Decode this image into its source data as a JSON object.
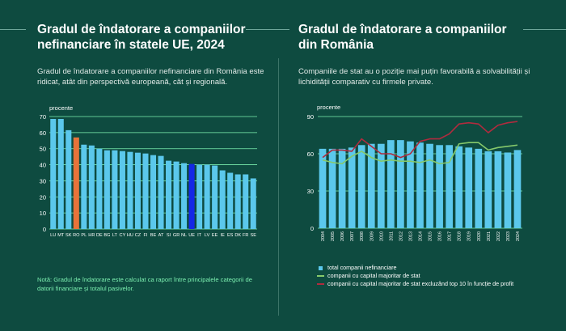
{
  "left_panel": {
    "title_line1": "Gradul de îndatorare a companiilor",
    "title_line2": "nefinanciare în statele UE, 2024",
    "description": "Gradul de îndatorare a companiilor nefinanciare din România este ridicat, atât din perspectivă europeană, cât și regională.",
    "note": "Notă: Gradul de îndatorare este calculat ca raport între principalele categorii de datorii financiare și totalul pasivelor."
  },
  "right_panel": {
    "title_line1": "Gradul de îndatorare a companiilor",
    "title_line2": "din România",
    "description": "Companiile de stat au o poziție mai puțin favorabilă a solvabilității și lichidității comparativ cu firmele private."
  },
  "colors": {
    "background": "#0e4b40",
    "bar": "#5bc8ec",
    "highlight_ro": "#e8733a",
    "highlight_eu": "#1428e6",
    "green_line": "#86c96b",
    "red_line": "#b02b3e",
    "gridline": "#7cf0b0",
    "note_text": "#7cf0b0"
  },
  "chart_data": [
    {
      "type": "bar",
      "ylabel": "procente",
      "ylim": [
        0,
        70
      ],
      "yticks": [
        0,
        10,
        20,
        30,
        40,
        50,
        60,
        70
      ],
      "grid": true,
      "categories": [
        "LU",
        "MT",
        "SK",
        "RO",
        "PL",
        "HR",
        "DE",
        "BG",
        "LT",
        "CY",
        "HU",
        "CZ",
        "FI",
        "BE",
        "AT",
        "SI",
        "GR",
        "NL",
        "UE",
        "IT",
        "LV",
        "EE",
        "IE",
        "ES",
        "DK",
        "FR",
        "SE"
      ],
      "values": [
        68.5,
        68.5,
        61.5,
        57,
        52.5,
        52,
        50,
        49,
        49,
        48.5,
        48,
        47.5,
        47,
        46,
        45.5,
        42.5,
        42,
        41,
        40.5,
        40,
        40,
        39.5,
        36.5,
        35,
        34,
        34,
        31.5
      ],
      "highlight": {
        "RO": "highlight_ro",
        "UE": "highlight_eu"
      }
    },
    {
      "type": "bar",
      "ylabel": "procente",
      "ylim": [
        0,
        90
      ],
      "yticks": [
        0,
        30,
        60,
        90
      ],
      "grid": true,
      "x": [
        "2004",
        "2005",
        "2006",
        "2007",
        "2008",
        "2009",
        "2010",
        "2011",
        "2012",
        "2013",
        "2014",
        "2015",
        "2016",
        "2017",
        "2018",
        "2019",
        "2020",
        "2021",
        "2022",
        "2023",
        "2024"
      ],
      "series": [
        {
          "name": "total companii nefinanciare",
          "kind": "bar",
          "values": [
            64,
            64,
            64,
            65,
            67,
            68,
            68,
            71,
            71,
            70,
            69,
            68,
            67,
            67,
            66,
            65,
            64,
            62,
            62,
            61,
            63
          ]
        },
        {
          "name": "companii cu capital majoritar de stat",
          "kind": "line",
          "values": [
            55,
            53,
            52,
            58,
            62,
            57,
            54,
            55,
            54,
            54,
            53,
            55,
            52,
            53,
            68,
            69,
            69,
            63,
            65,
            66,
            67
          ]
        },
        {
          "name": "companii cu capital majoritar de stat excluzând top 10 în funcție de profit",
          "kind": "line",
          "values": [
            57,
            63,
            63,
            62,
            72,
            66,
            60,
            60,
            57,
            60,
            70,
            72,
            72,
            76,
            84,
            85,
            84,
            77,
            83,
            85,
            86
          ]
        }
      ]
    }
  ]
}
